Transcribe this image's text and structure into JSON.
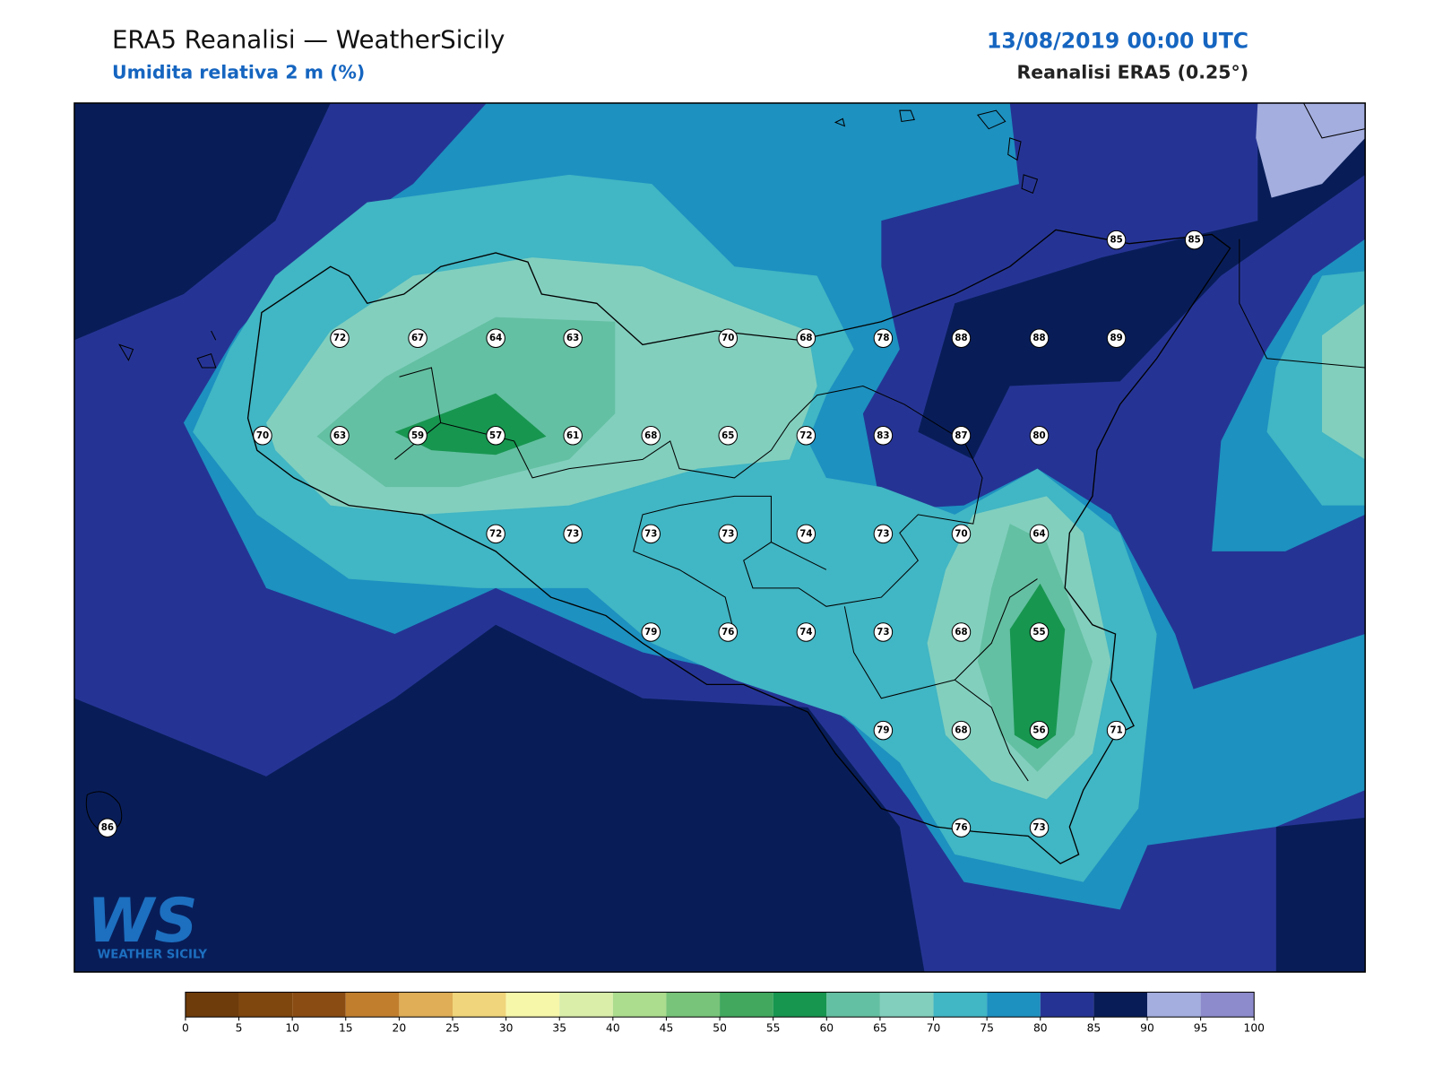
{
  "header": {
    "title": "ERA5 Reanalisi — WeatherSicily",
    "subtitle": "Umidita relativa 2 m (%)",
    "datetime": "13/08/2019 00:00 UTC",
    "source": "Reanalisi ERA5 (0.25°)"
  },
  "stations": [
    85,
    85,
    72,
    67,
    64,
    63,
    70,
    68,
    78,
    88,
    88,
    89,
    70,
    63,
    59,
    57,
    61,
    68,
    65,
    72,
    83,
    87,
    80,
    72,
    73,
    73,
    73,
    74,
    73,
    70,
    64,
    79,
    76,
    74,
    73,
    68,
    55,
    79,
    68,
    56,
    71,
    86,
    76,
    73
  ],
  "colorbar": {
    "ticks": [
      0,
      5,
      10,
      15,
      20,
      25,
      30,
      35,
      40,
      45,
      50,
      55,
      60,
      65,
      70,
      75,
      80,
      85,
      90,
      95,
      100
    ],
    "colors": [
      "#6e3c0a",
      "#7f460e",
      "#8a4c12",
      "#c17f2e",
      "#dfae57",
      "#f0d57c",
      "#f7f7aa",
      "#daeeaa",
      "#acdc8e",
      "#78c47a",
      "#41a85e",
      "#179650",
      "#64c0a2",
      "#82cfbe",
      "#41b6c4",
      "#1d91c0",
      "#253494",
      "#081d58",
      "#a4aedf",
      "#8d8bcc"
    ]
  },
  "logo": {
    "mark": "WS",
    "name": "WEATHER SICILY"
  }
}
